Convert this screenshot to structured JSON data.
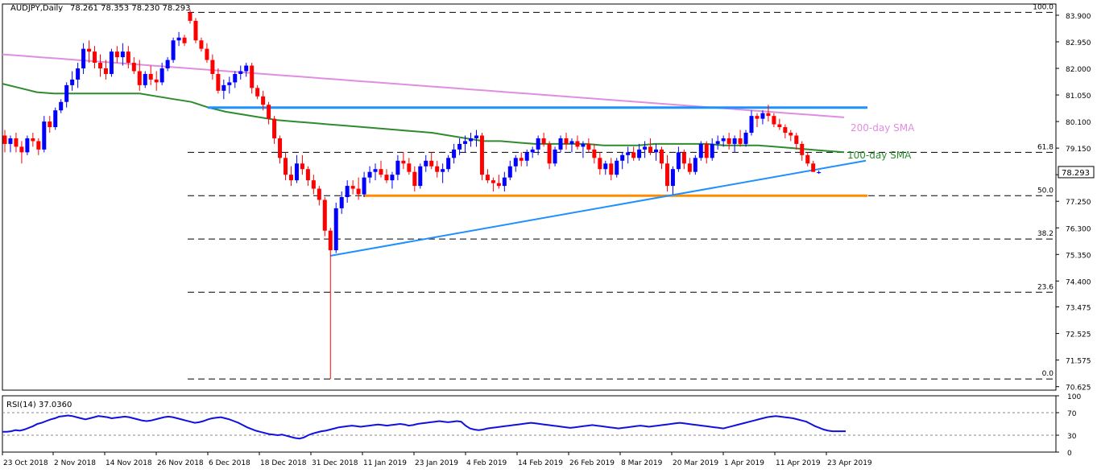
{
  "header": {
    "symbol": "AUDJPY,Daily",
    "ohlc": "78.261 78.353 78.230 78.293"
  },
  "rsi": {
    "label": "RSI(14) 37.0360",
    "ticks": [
      "100",
      "70",
      "30",
      "0"
    ],
    "levels": [
      70,
      30
    ],
    "range": [
      0,
      100
    ],
    "values": [
      36,
      36,
      37,
      39,
      38,
      40,
      43,
      46,
      50,
      52,
      55,
      58,
      60,
      63,
      64,
      65,
      64,
      62,
      60,
      58,
      60,
      62,
      64,
      63,
      62,
      60,
      61,
      62,
      63,
      62,
      60,
      58,
      56,
      55,
      56,
      58,
      60,
      62,
      63,
      62,
      60,
      58,
      56,
      54,
      52,
      53,
      55,
      58,
      60,
      61,
      62,
      60,
      58,
      55,
      52,
      48,
      44,
      41,
      38,
      36,
      34,
      32,
      31,
      30,
      31,
      29,
      27,
      25,
      24,
      26,
      30,
      33,
      35,
      37,
      38,
      40,
      42,
      44,
      45,
      46,
      47,
      46,
      45,
      46,
      47,
      48,
      49,
      48,
      47,
      48,
      49,
      50,
      49,
      47,
      48,
      50,
      51,
      52,
      53,
      54,
      55,
      54,
      53,
      54,
      55,
      54,
      47,
      42,
      40,
      39,
      40,
      42,
      43,
      44,
      45,
      46,
      47,
      48,
      49,
      50,
      51,
      52,
      51,
      50,
      49,
      48,
      47,
      46,
      45,
      44,
      43,
      44,
      45,
      46,
      47,
      48,
      47,
      46,
      45,
      44,
      43,
      42,
      43,
      44,
      45,
      46,
      47,
      46,
      45,
      46,
      47,
      48,
      49,
      50,
      51,
      52,
      51,
      50,
      49,
      48,
      47,
      46,
      45,
      44,
      43,
      42,
      44,
      46,
      48,
      50,
      52,
      54,
      56,
      58,
      60,
      62,
      63,
      64,
      63,
      62,
      61,
      60,
      58,
      56,
      54,
      50,
      46,
      43,
      40,
      38,
      37,
      37,
      37,
      37
    ]
  },
  "price_axis_label": "78.293",
  "chart_data": {
    "type": "candlestick",
    "title": "AUDJPY,Daily",
    "ohlc_header": "78.261 78.353 78.230 78.293",
    "x_ticks": [
      "23 Oct 2018",
      "2 Nov 2018",
      "14 Nov 2018",
      "26 Nov 2018",
      "6 Dec 2018",
      "18 Dec 2018",
      "31 Dec 2018",
      "11 Jan 2019",
      "23 Jan 2019",
      "4 Feb 2019",
      "14 Feb 2019",
      "26 Feb 2019",
      "8 Mar 2019",
      "20 Mar 2019",
      "1 Apr 2019",
      "11 Apr 2019",
      "23 Apr 2019"
    ],
    "y_ticks": [
      "83.900",
      "82.950",
      "82.000",
      "81.050",
      "80.100",
      "79.150",
      "78.200",
      "77.250",
      "76.300",
      "75.350",
      "74.400",
      "73.475",
      "72.525",
      "71.575",
      "70.625"
    ],
    "ylim": [
      70.5,
      84.3
    ],
    "last_price": 78.293,
    "fibonacci": [
      {
        "label": "100.0",
        "price": 84.0
      },
      {
        "label": "61.8",
        "price": 79.0
      },
      {
        "label": "50.0",
        "price": 77.45
      },
      {
        "label": "38.2",
        "price": 75.9
      },
      {
        "label": "23.6",
        "price": 74.0
      },
      {
        "label": "0.0",
        "price": 70.9
      }
    ],
    "sma200_label": "200-day SMA",
    "sma100_label": "100-day SMA",
    "sma200": [
      82.5,
      82.45,
      82.4,
      82.35,
      82.3,
      82.25,
      82.2,
      82.15,
      82.1,
      82.05,
      82.0,
      81.95,
      81.9,
      81.85,
      81.8,
      81.75,
      81.7,
      81.65,
      81.6,
      81.55,
      81.5,
      81.45,
      81.4,
      81.35,
      81.3,
      81.25,
      81.2,
      81.15,
      81.1,
      81.05,
      81.0,
      80.95,
      80.9,
      80.85,
      80.8,
      80.75,
      80.7,
      80.65,
      80.6,
      80.55,
      80.5,
      80.45,
      80.4,
      80.35,
      80.3,
      80.25
    ],
    "sma100": [
      81.45,
      81.3,
      81.15,
      81.1,
      81.1,
      81.1,
      81.1,
      81.1,
      81.1,
      81.0,
      80.9,
      80.8,
      80.6,
      80.45,
      80.35,
      80.25,
      80.15,
      80.1,
      80.05,
      80.0,
      79.95,
      79.9,
      79.85,
      79.8,
      79.75,
      79.7,
      79.6,
      79.5,
      79.4,
      79.4,
      79.35,
      79.3,
      79.3,
      79.3,
      79.3,
      79.25,
      79.25,
      79.25,
      79.3,
      79.3,
      79.3,
      79.3,
      79.25,
      79.25,
      79.25,
      79.2,
      79.15,
      79.1,
      79.05,
      79.0
    ],
    "resistance_line": {
      "start": "6 Dec 2018",
      "end": "26 Apr 2019",
      "price": 80.6
    },
    "support_line": {
      "start": "11 Jan 2019",
      "end": "26 Apr 2019",
      "price": 77.45
    },
    "trendline": {
      "from": {
        "date": "3 Jan 2019",
        "price": 75.3
      },
      "to": {
        "date": "26 Apr 2019",
        "price": 78.7
      }
    },
    "candles": [
      [
        79.6,
        79.8,
        79.0,
        79.3
      ],
      [
        79.3,
        79.6,
        79.0,
        79.5
      ],
      [
        79.5,
        79.7,
        79.0,
        79.2
      ],
      [
        79.2,
        79.4,
        78.6,
        79.0
      ],
      [
        79.0,
        79.6,
        78.9,
        79.5
      ],
      [
        79.5,
        79.7,
        79.2,
        79.4
      ],
      [
        79.4,
        79.5,
        78.9,
        79.1
      ],
      [
        79.1,
        80.3,
        79.0,
        80.1
      ],
      [
        80.1,
        80.3,
        79.7,
        79.9
      ],
      [
        79.9,
        80.6,
        79.8,
        80.5
      ],
      [
        80.5,
        80.9,
        80.4,
        80.8
      ],
      [
        80.8,
        81.5,
        80.6,
        81.4
      ],
      [
        81.4,
        81.9,
        81.2,
        81.6
      ],
      [
        81.6,
        82.2,
        81.3,
        82.0
      ],
      [
        82.0,
        82.9,
        81.8,
        82.7
      ],
      [
        82.7,
        83.0,
        82.2,
        82.6
      ],
      [
        82.6,
        82.8,
        82.0,
        82.2
      ],
      [
        82.2,
        82.5,
        81.7,
        82.0
      ],
      [
        82.0,
        82.3,
        81.6,
        81.8
      ],
      [
        81.8,
        82.7,
        81.7,
        82.6
      ],
      [
        82.6,
        82.8,
        82.2,
        82.4
      ],
      [
        82.4,
        82.9,
        82.1,
        82.6
      ],
      [
        82.6,
        82.8,
        82.0,
        82.2
      ],
      [
        82.2,
        82.4,
        81.8,
        81.9
      ],
      [
        81.9,
        82.3,
        81.2,
        81.4
      ],
      [
        81.4,
        81.9,
        81.3,
        81.8
      ],
      [
        81.8,
        82.1,
        81.4,
        81.6
      ],
      [
        81.6,
        81.9,
        81.2,
        81.5
      ],
      [
        81.5,
        82.2,
        81.4,
        82.0
      ],
      [
        82.0,
        82.4,
        81.9,
        82.3
      ],
      [
        82.3,
        83.1,
        82.2,
        83.0
      ],
      [
        83.0,
        83.3,
        82.8,
        83.1
      ],
      [
        83.1,
        83.2,
        82.8,
        82.9
      ],
      [
        84.0,
        84.1,
        83.6,
        83.7
      ],
      [
        83.7,
        83.8,
        82.9,
        83.0
      ],
      [
        83.0,
        83.1,
        82.6,
        82.7
      ],
      [
        82.7,
        82.9,
        82.2,
        82.3
      ],
      [
        82.3,
        82.5,
        81.6,
        81.8
      ],
      [
        81.8,
        82.0,
        81.1,
        81.2
      ],
      [
        81.2,
        81.6,
        80.9,
        81.4
      ],
      [
        81.4,
        81.7,
        81.1,
        81.5
      ],
      [
        81.5,
        81.9,
        81.3,
        81.8
      ],
      [
        81.8,
        82.1,
        81.6,
        81.9
      ],
      [
        81.9,
        82.2,
        81.7,
        82.1
      ],
      [
        82.1,
        82.2,
        81.1,
        81.3
      ],
      [
        81.3,
        81.4,
        80.9,
        81.0
      ],
      [
        81.0,
        81.2,
        80.5,
        80.7
      ],
      [
        80.7,
        80.8,
        80.0,
        80.2
      ],
      [
        80.2,
        80.3,
        79.3,
        79.5
      ],
      [
        79.5,
        79.6,
        78.6,
        78.8
      ],
      [
        78.8,
        79.0,
        78.0,
        78.2
      ],
      [
        78.2,
        78.5,
        77.8,
        78.0
      ],
      [
        78.0,
        78.9,
        77.9,
        78.6
      ],
      [
        78.6,
        78.9,
        78.2,
        78.4
      ],
      [
        78.4,
        78.5,
        77.8,
        78.0
      ],
      [
        78.0,
        78.2,
        77.5,
        77.7
      ],
      [
        77.7,
        77.8,
        77.1,
        77.3
      ],
      [
        77.3,
        77.4,
        76.0,
        76.2
      ],
      [
        76.2,
        76.3,
        70.9,
        75.5
      ],
      [
        75.5,
        77.2,
        75.4,
        77.0
      ],
      [
        77.0,
        77.6,
        76.8,
        77.4
      ],
      [
        77.4,
        78.0,
        77.2,
        77.8
      ],
      [
        77.8,
        78.0,
        77.5,
        77.7
      ],
      [
        77.7,
        78.1,
        77.3,
        77.5
      ],
      [
        77.5,
        78.3,
        77.4,
        78.1
      ],
      [
        78.1,
        78.5,
        77.9,
        78.3
      ],
      [
        78.3,
        78.6,
        78.0,
        78.4
      ],
      [
        78.4,
        78.7,
        78.1,
        78.2
      ],
      [
        78.2,
        78.4,
        77.9,
        78.0
      ],
      [
        78.0,
        78.3,
        77.7,
        78.2
      ],
      [
        78.2,
        78.9,
        78.0,
        78.7
      ],
      [
        78.7,
        79.0,
        78.4,
        78.6
      ],
      [
        78.6,
        78.8,
        78.2,
        78.3
      ],
      [
        78.3,
        78.5,
        77.6,
        77.8
      ],
      [
        77.8,
        78.6,
        77.7,
        78.5
      ],
      [
        78.5,
        78.9,
        78.3,
        78.7
      ],
      [
        78.7,
        79.0,
        78.4,
        78.5
      ],
      [
        78.5,
        78.7,
        78.1,
        78.3
      ],
      [
        78.3,
        78.6,
        77.9,
        78.4
      ],
      [
        78.4,
        78.9,
        78.3,
        78.8
      ],
      [
        78.8,
        79.3,
        78.6,
        79.1
      ],
      [
        79.1,
        79.5,
        78.9,
        79.3
      ],
      [
        79.3,
        79.6,
        79.0,
        79.4
      ],
      [
        79.4,
        79.7,
        79.2,
        79.5
      ],
      [
        79.5,
        79.8,
        79.2,
        79.6
      ],
      [
        79.6,
        79.7,
        78.0,
        78.2
      ],
      [
        78.2,
        78.4,
        77.9,
        78.0
      ],
      [
        78.0,
        78.1,
        77.6,
        77.9
      ],
      [
        77.9,
        78.2,
        77.7,
        77.8
      ],
      [
        77.8,
        78.3,
        77.6,
        78.1
      ],
      [
        78.1,
        78.7,
        78.0,
        78.5
      ],
      [
        78.5,
        78.9,
        78.3,
        78.8
      ],
      [
        78.8,
        79.0,
        78.5,
        78.7
      ],
      [
        78.7,
        79.1,
        78.5,
        79.0
      ],
      [
        79.0,
        79.2,
        78.8,
        79.1
      ],
      [
        79.1,
        79.6,
        78.9,
        79.5
      ],
      [
        79.5,
        79.7,
        79.2,
        79.3
      ],
      [
        79.3,
        79.4,
        78.4,
        78.6
      ],
      [
        78.6,
        79.2,
        78.5,
        79.1
      ],
      [
        79.1,
        79.6,
        79.0,
        79.5
      ],
      [
        79.5,
        79.7,
        79.1,
        79.3
      ],
      [
        79.3,
        79.5,
        79.0,
        79.4
      ],
      [
        79.4,
        79.6,
        79.1,
        79.2
      ],
      [
        79.2,
        79.4,
        78.8,
        79.3
      ],
      [
        79.3,
        79.5,
        79.0,
        79.1
      ],
      [
        79.1,
        79.3,
        78.6,
        78.8
      ],
      [
        78.8,
        79.0,
        78.2,
        78.4
      ],
      [
        78.4,
        78.7,
        78.2,
        78.6
      ],
      [
        78.6,
        78.8,
        78.0,
        78.2
      ],
      [
        78.2,
        78.8,
        78.1,
        78.7
      ],
      [
        78.7,
        79.0,
        78.4,
        78.9
      ],
      [
        78.9,
        79.2,
        78.6,
        79.0
      ],
      [
        79.0,
        79.2,
        78.7,
        78.8
      ],
      [
        78.8,
        79.3,
        78.7,
        79.1
      ],
      [
        79.1,
        79.4,
        78.8,
        79.2
      ],
      [
        79.2,
        79.5,
        78.9,
        79.0
      ],
      [
        79.0,
        79.3,
        78.7,
        79.1
      ],
      [
        79.1,
        79.2,
        78.4,
        78.6
      ],
      [
        78.6,
        78.9,
        77.6,
        77.8
      ],
      [
        77.8,
        78.5,
        77.5,
        78.4
      ],
      [
        78.4,
        79.2,
        78.3,
        79.0
      ],
      [
        79.0,
        79.1,
        78.4,
        78.6
      ],
      [
        78.6,
        78.8,
        78.2,
        78.3
      ],
      [
        78.3,
        78.9,
        78.2,
        78.8
      ],
      [
        78.8,
        79.4,
        78.7,
        79.3
      ],
      [
        79.3,
        79.4,
        78.6,
        78.8
      ],
      [
        78.8,
        79.5,
        78.7,
        79.3
      ],
      [
        79.3,
        79.6,
        79.1,
        79.4
      ],
      [
        79.4,
        79.6,
        79.2,
        79.5
      ],
      [
        79.5,
        79.7,
        79.1,
        79.3
      ],
      [
        79.3,
        79.6,
        79.0,
        79.5
      ],
      [
        79.5,
        79.8,
        79.2,
        79.3
      ],
      [
        79.3,
        79.8,
        79.2,
        79.7
      ],
      [
        79.7,
        80.5,
        79.6,
        80.3
      ],
      [
        80.3,
        80.4,
        79.9,
        80.2
      ],
      [
        80.2,
        80.5,
        80.0,
        80.4
      ],
      [
        80.4,
        80.7,
        80.1,
        80.3
      ],
      [
        80.3,
        80.4,
        79.9,
        80.0
      ],
      [
        80.0,
        80.2,
        79.8,
        79.9
      ],
      [
        79.9,
        80.0,
        79.5,
        79.7
      ],
      [
        79.7,
        79.8,
        79.4,
        79.6
      ],
      [
        79.6,
        79.7,
        79.1,
        79.3
      ],
      [
        79.3,
        79.4,
        78.7,
        78.9
      ],
      [
        78.9,
        79.0,
        78.5,
        78.6
      ],
      [
        78.6,
        78.7,
        78.3,
        78.3
      ],
      [
        78.26,
        78.35,
        78.23,
        78.29
      ]
    ]
  }
}
